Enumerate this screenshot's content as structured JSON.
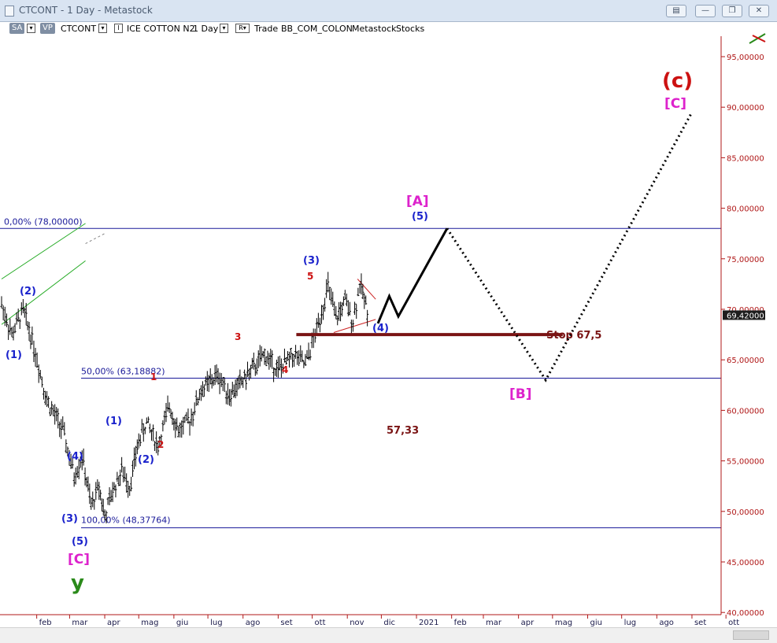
{
  "window": {
    "title": "CTCONT - 1 Day - Metastock",
    "buttons": [
      "▤",
      "—",
      "❐",
      "✕"
    ]
  },
  "toolbar": {
    "sa_label": "SA",
    "vp_label": "VP",
    "symbol": "CTCONT",
    "instrument": "ICE COTTON N2",
    "period": "1 Day",
    "r_label": "R",
    "trade": "Trade",
    "template": "BB_COM_COLON",
    "source": "Metastock",
    "type": "Stocks"
  },
  "last_price": "69,42000",
  "chart_data": {
    "type": "line",
    "series_style": "bar (OHLC)",
    "ylim": [
      40,
      98
    ],
    "y_ticks": [
      "95,00000",
      "90,00000",
      "85,00000",
      "80,00000",
      "75,00000",
      "70,00000",
      "65,00000",
      "60,00000",
      "55,00000",
      "50,00000",
      "45,00000",
      "40,00000"
    ],
    "x_ticks": [
      "feb",
      "mar",
      "apr",
      "mag",
      "giu",
      "lug",
      "ago",
      "set",
      "ott",
      "nov",
      "dic",
      "2021",
      "feb",
      "mar",
      "apr",
      "mag",
      "giu",
      "lug",
      "ago",
      "set",
      "ott"
    ],
    "fib_levels": [
      {
        "label": "0,00% (78,00000)",
        "value": 78.0
      },
      {
        "label": "50,00% (63,18882)",
        "value": 63.18882
      },
      {
        "label": "100,00% (48,37764)",
        "value": 48.37764
      }
    ],
    "stop_line": {
      "label": "Stop 67,5",
      "value": 67.5
    },
    "target_text": "57,33",
    "wave_labels": {
      "blue": [
        "(1)",
        "(2)",
        "(3)",
        "(4)",
        "(5)",
        "(1)",
        "(2)",
        "(3)",
        "(4)",
        "(5)"
      ],
      "red_minor": [
        "1",
        "2",
        "3",
        "4",
        "5"
      ],
      "magenta": [
        "[C]",
        "[A]",
        "[B]",
        "[C]"
      ],
      "green": "y",
      "red_major": "(c)"
    },
    "price_path": [
      [
        "2020-01-01",
        70.5
      ],
      [
        "2020-01-10",
        67.5
      ],
      [
        "2020-01-20",
        69.9
      ],
      [
        "2020-01-28",
        67.0
      ],
      [
        "2020-02-10",
        61.0
      ],
      [
        "2020-02-24",
        58.0
      ],
      [
        "2020-03-05",
        53.5
      ],
      [
        "2020-03-12",
        55.5
      ],
      [
        "2020-03-20",
        50.5
      ],
      [
        "2020-03-27",
        52.5
      ],
      [
        "2020-04-01",
        49.5
      ],
      [
        "2020-04-08",
        52.0
      ],
      [
        "2020-04-16",
        54.0
      ],
      [
        "2020-04-23",
        52.5
      ],
      [
        "2020-05-01",
        57.0
      ],
      [
        "2020-05-08",
        58.8
      ],
      [
        "2020-05-18",
        56.5
      ],
      [
        "2020-05-28",
        60.5
      ],
      [
        "2020-06-05",
        58.0
      ],
      [
        "2020-06-15",
        59.0
      ],
      [
        "2020-06-25",
        62.0
      ],
      [
        "2020-07-10",
        63.5
      ],
      [
        "2020-07-20",
        61.5
      ],
      [
        "2020-08-05",
        63.5
      ],
      [
        "2020-08-20",
        65.5
      ],
      [
        "2020-09-01",
        64.0
      ],
      [
        "2020-09-15",
        65.5
      ],
      [
        "2020-09-25",
        64.5
      ],
      [
        "2020-10-05",
        68.0
      ],
      [
        "2020-10-15",
        72.2
      ],
      [
        "2020-10-22",
        69.0
      ],
      [
        "2020-10-30",
        70.8
      ],
      [
        "2020-11-06",
        68.8
      ],
      [
        "2020-11-12",
        72.5
      ],
      [
        "2020-11-20",
        69.5
      ]
    ],
    "projection_path": [
      [
        "2020-11-28",
        68.6
      ],
      [
        "2020-12-08",
        71.3
      ],
      [
        "2020-12-16",
        69.3
      ],
      [
        "2021-01-28",
        78.0
      ],
      [
        "2021-04-25",
        63.0
      ],
      [
        "2021-09-01",
        89.5
      ]
    ],
    "trendlines": [
      {
        "color": "#22aa22",
        "from": [
          "2020-01-01",
          73.0
        ],
        "to": [
          "2020-03-15",
          78.5
        ]
      },
      {
        "color": "#22aa22",
        "from": [
          "2020-01-01",
          68.5
        ],
        "to": [
          "2020-03-15",
          74.8
        ]
      },
      {
        "color": "#888888",
        "from": [
          "2020-03-15",
          76.5
        ],
        "to": [
          "2020-04-01",
          77.5
        ]
      },
      {
        "color": "#cc2222",
        "from": [
          "2020-11-10",
          73.0
        ],
        "to": [
          "2020-11-26",
          71.0
        ]
      },
      {
        "color": "#cc2222",
        "from": [
          "2020-10-20",
          67.7
        ],
        "to": [
          "2020-11-26",
          69.0
        ]
      }
    ],
    "colors": {
      "price": "#000000",
      "fib": "#1a1a99",
      "stop": "#7a1414",
      "blue_label": "#1a22cc",
      "red_label": "#cc1111",
      "magenta_label": "#dd22cc",
      "green_label": "#2a8a1a",
      "axis_text": "#b01818"
    }
  }
}
